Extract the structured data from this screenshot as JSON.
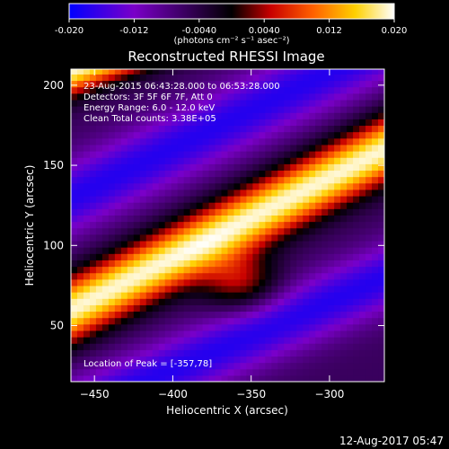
{
  "chart_data": {
    "type": "heatmap",
    "title": "Reconstructed RHESSI Image",
    "xlabel": "Heliocentric X (arcsec)",
    "ylabel": "Heliocentric Y (arcsec)",
    "xlim": [
      -465,
      -265
    ],
    "ylim": [
      15,
      210
    ],
    "x_ticks": [
      -450,
      -400,
      -350,
      -300
    ],
    "y_ticks": [
      50,
      100,
      150,
      200
    ],
    "colorbar": {
      "range": [
        -0.02,
        0.02
      ],
      "ticks": [
        "-0.020",
        "-0.012",
        "-0.0040",
        "0.0040",
        "0.012",
        "0.020"
      ],
      "tick_values": [
        -0.02,
        -0.012,
        -0.004,
        0.004,
        0.012,
        0.02
      ],
      "unit_label": "(photons cm⁻² s⁻¹ asec⁻²)",
      "colors": [
        "#0000ff",
        "#7a00c8",
        "#000000",
        "#c80000",
        "#ff6000",
        "#ffd000",
        "#ffffff"
      ]
    },
    "annotations": [
      "23-Aug-2015 06:43:28.000 to 06:53:28.000",
      "Detectors: 3F 5F 6F 7F, Att 0",
      "Energy Range: 6.0 - 12.0 keV",
      "Clean     Total counts: 3.38E+05"
    ],
    "peak_label": "Location of Peak = [-357,78]",
    "peak": [
      -357,
      78
    ],
    "bands": [
      {
        "type": "bright",
        "y_at_x_min": 60,
        "y_at_x_max": 160,
        "width": 20
      },
      {
        "type": "bright",
        "y_at_x_min": 210,
        "y_at_x_max": 285,
        "width": 16
      },
      {
        "type": "dark",
        "y_at_x_min": 130,
        "y_at_x_max": 225,
        "width": 24
      },
      {
        "type": "dark",
        "y_at_x_min": -5,
        "y_at_x_max": 80,
        "width": 22
      }
    ]
  },
  "footer": {
    "timestamp": "12-Aug-2017 05:47"
  }
}
